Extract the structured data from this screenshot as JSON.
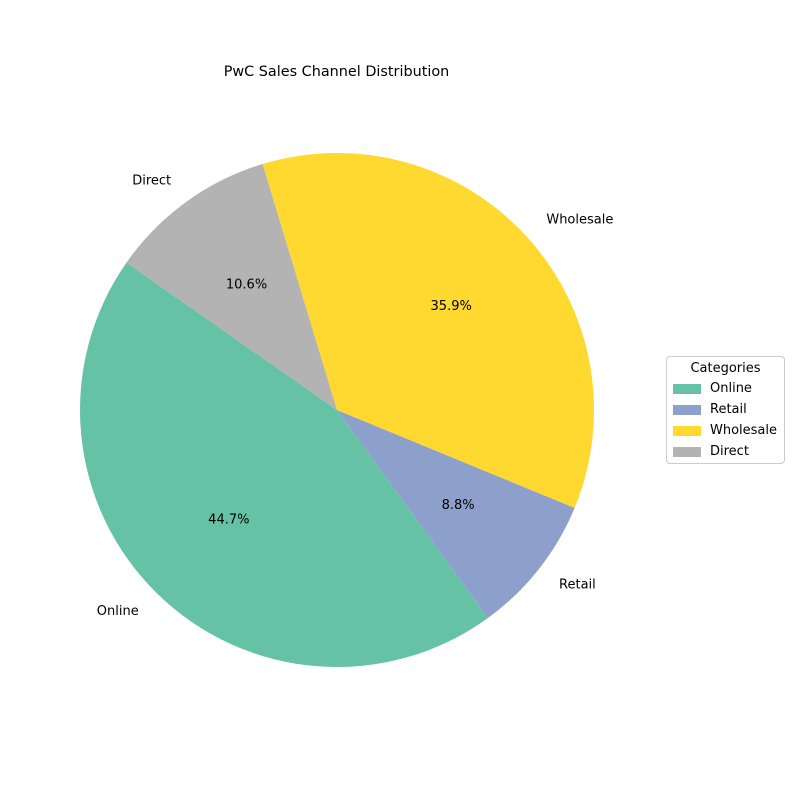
{
  "chart_data": {
    "type": "pie",
    "title": "PwC Sales Channel Distribution",
    "categories": [
      "Online",
      "Retail",
      "Wholesale",
      "Direct"
    ],
    "values": [
      44.7,
      8.8,
      35.9,
      10.6
    ],
    "value_labels": [
      "44.7%",
      "8.8%",
      "35.9%",
      "10.6%"
    ],
    "colors": [
      "#66c2a5",
      "#8da0cb",
      "#ffd92f",
      "#b3b3b3"
    ],
    "start_angle_deg": 145,
    "direction": "counterclockwise",
    "legend": {
      "title": "Categories",
      "placement": "right"
    }
  }
}
